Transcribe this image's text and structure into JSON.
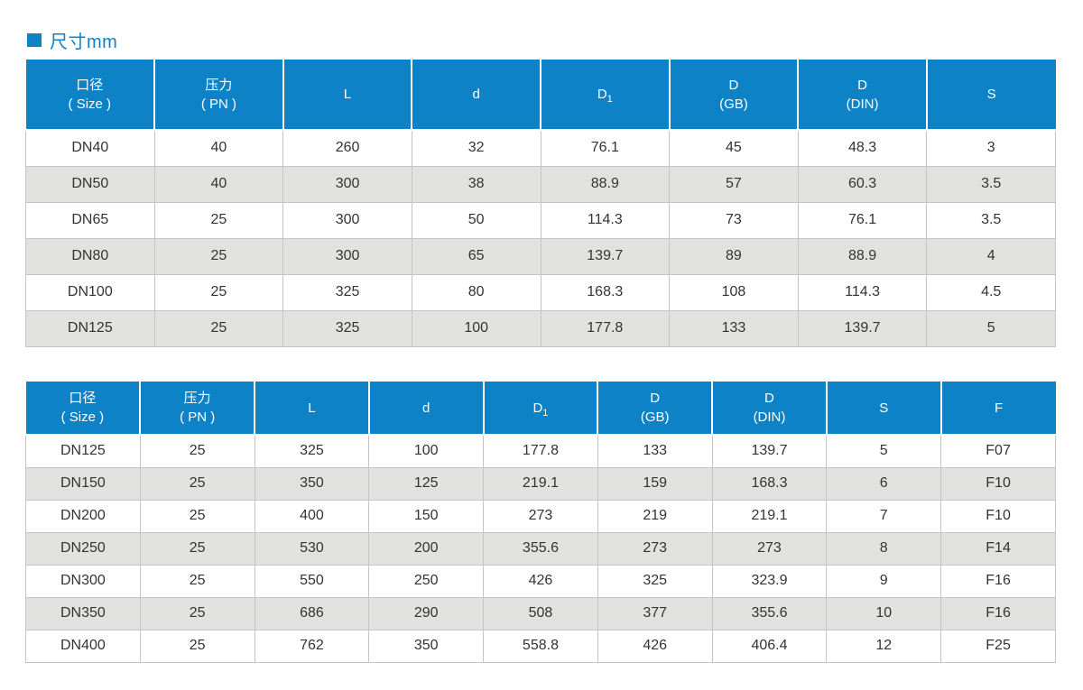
{
  "page": {
    "title": "尺寸mm"
  },
  "colors": {
    "accent_blue": "#0e82c6",
    "header_text": "#ffffff",
    "row_alt_grey": "#e1e1df",
    "cell_border": "#c4c4c2",
    "body_text": "#333333"
  },
  "tables": [
    {
      "name": "dimensions-table-1",
      "headers": [
        {
          "line1": "口径",
          "line2": "( Size )"
        },
        {
          "line1": "压力",
          "line2": "( PN )"
        },
        {
          "line1": "L"
        },
        {
          "line1": "d"
        },
        {
          "line1": "D",
          "sub": "1"
        },
        {
          "line1": "D",
          "line2": "(GB)"
        },
        {
          "line1": "D",
          "line2": "(DIN)"
        },
        {
          "line1": "S"
        }
      ],
      "rows": [
        [
          "DN40",
          "40",
          "260",
          "32",
          "76.1",
          "45",
          "48.3",
          "3"
        ],
        [
          "DN50",
          "40",
          "300",
          "38",
          "88.9",
          "57",
          "60.3",
          "3.5"
        ],
        [
          "DN65",
          "25",
          "300",
          "50",
          "114.3",
          "73",
          "76.1",
          "3.5"
        ],
        [
          "DN80",
          "25",
          "300",
          "65",
          "139.7",
          "89",
          "88.9",
          "4"
        ],
        [
          "DN100",
          "25",
          "325",
          "80",
          "168.3",
          "108",
          "114.3",
          "4.5"
        ],
        [
          "DN125",
          "25",
          "325",
          "100",
          "177.8",
          "133",
          "139.7",
          "5"
        ]
      ]
    },
    {
      "name": "dimensions-table-2",
      "headers": [
        {
          "line1": "口径",
          "line2": "( Size )"
        },
        {
          "line1": "压力",
          "line2": "( PN )"
        },
        {
          "line1": "L"
        },
        {
          "line1": "d"
        },
        {
          "line1": "D",
          "sub": "1"
        },
        {
          "line1": "D",
          "line2": "(GB)"
        },
        {
          "line1": "D",
          "line2": "(DIN)"
        },
        {
          "line1": "S"
        },
        {
          "line1": "F"
        }
      ],
      "rows": [
        [
          "DN125",
          "25",
          "325",
          "100",
          "177.8",
          "133",
          "139.7",
          "5",
          "F07"
        ],
        [
          "DN150",
          "25",
          "350",
          "125",
          "219.1",
          "159",
          "168.3",
          "6",
          "F10"
        ],
        [
          "DN200",
          "25",
          "400",
          "150",
          "273",
          "219",
          "219.1",
          "7",
          "F10"
        ],
        [
          "DN250",
          "25",
          "530",
          "200",
          "355.6",
          "273",
          "273",
          "8",
          "F14"
        ],
        [
          "DN300",
          "25",
          "550",
          "250",
          "426",
          "325",
          "323.9",
          "9",
          "F16"
        ],
        [
          "DN350",
          "25",
          "686",
          "290",
          "508",
          "377",
          "355.6",
          "10",
          "F16"
        ],
        [
          "DN400",
          "25",
          "762",
          "350",
          "558.8",
          "426",
          "406.4",
          "12",
          "F25"
        ]
      ]
    }
  ]
}
